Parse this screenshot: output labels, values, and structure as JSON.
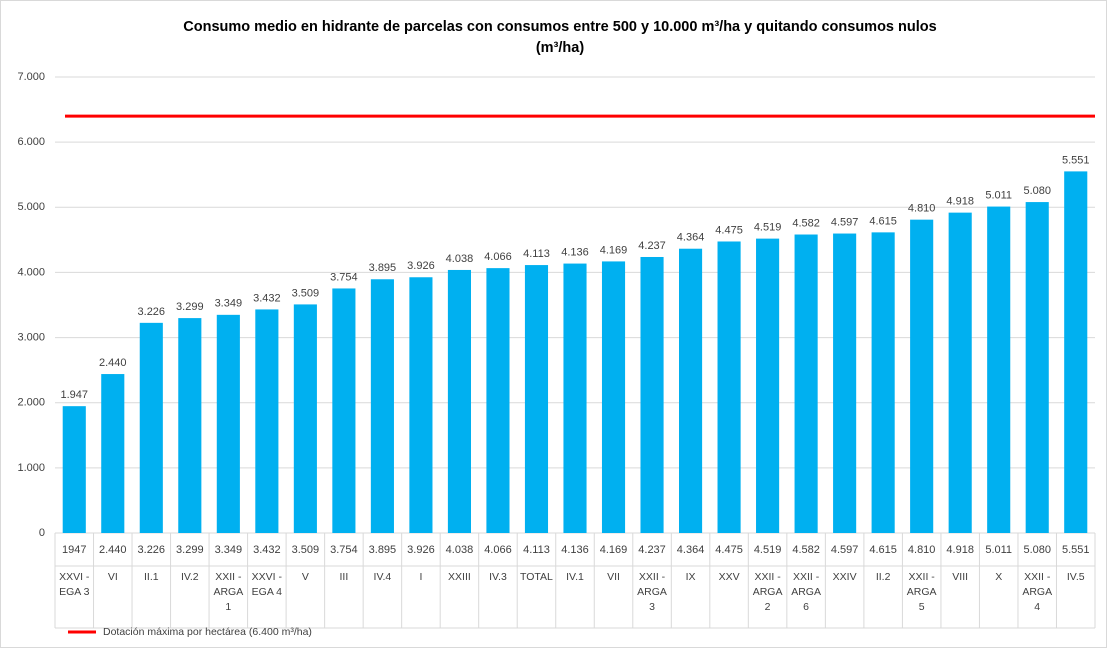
{
  "chart_data": {
    "type": "bar",
    "title": [
      "Consumo medio en hidrante de parcelas con consumos entre 500 y 10.000 m³/ha y quitando consumos nulos",
      "(m³/ha)"
    ],
    "categories": [
      "XXVI -\nEGA 3",
      "VI",
      "II.1",
      "IV.2",
      "XXII -\nARGA\n1",
      "XXVI -\nEGA 4",
      "V",
      "III",
      "IV.4",
      "I",
      "XXIII",
      "IV.3",
      "TOTAL",
      "IV.1",
      "VII",
      "XXII -\nARGA\n3",
      "IX",
      "XXV",
      "XXII -\nARGA\n2",
      "XXII -\nARGA\n6",
      "XXIV",
      "II.2",
      "XXII -\nARGA\n5",
      "VIII",
      "X",
      "XXII -\nARGA\n4",
      "IV.5"
    ],
    "values": [
      1947,
      2440,
      3226,
      3299,
      3349,
      3432,
      3509,
      3754,
      3895,
      3926,
      4038,
      4066,
      4113,
      4136,
      4169,
      4237,
      4364,
      4475,
      4519,
      4582,
      4597,
      4615,
      4810,
      4918,
      5011,
      5080,
      5551
    ],
    "value_labels": [
      "1.947",
      "2.440",
      "3.226",
      "3.299",
      "3.349",
      "3.432",
      "3.509",
      "3.754",
      "3.895",
      "3.926",
      "4.038",
      "4.066",
      "4.113",
      "4.136",
      "4.169",
      "4.237",
      "4.364",
      "4.475",
      "4.519",
      "4.582",
      "4.597",
      "4.615",
      "4.810",
      "4.918",
      "5.011",
      "5.080",
      "5.551"
    ],
    "table_labels": [
      "1947",
      "2.440",
      "3.226",
      "3.299",
      "3.349",
      "3.432",
      "3.509",
      "3.754",
      "3.895",
      "3.926",
      "4.038",
      "4.066",
      "4.113",
      "4.136",
      "4.169",
      "4.237",
      "4.364",
      "4.475",
      "4.519",
      "4.582",
      "4.597",
      "4.615",
      "4.810",
      "4.918",
      "5.011",
      "5.080",
      "5.551"
    ],
    "color": "#00b0f0",
    "ylim": [
      0,
      7000
    ],
    "yticks": [
      0,
      {
        "value": 1000,
        "label": "1.000"
      },
      {
        "value": 2000,
        "label": "2.000"
      },
      {
        "value": 3000,
        "label": "3.000"
      },
      {
        "value": 4000,
        "label": "4.000"
      },
      {
        "value": 5000,
        "label": "5.000"
      },
      {
        "value": 6000,
        "label": "6.000"
      },
      {
        "value": 7000,
        "label": "7.000"
      }
    ],
    "grid": true,
    "reference_line": {
      "name": "Dotación máxima por hectárea (6.400 m³/ha)",
      "value": 6400,
      "color": "#ff0000"
    },
    "legend": "bottom-left"
  }
}
